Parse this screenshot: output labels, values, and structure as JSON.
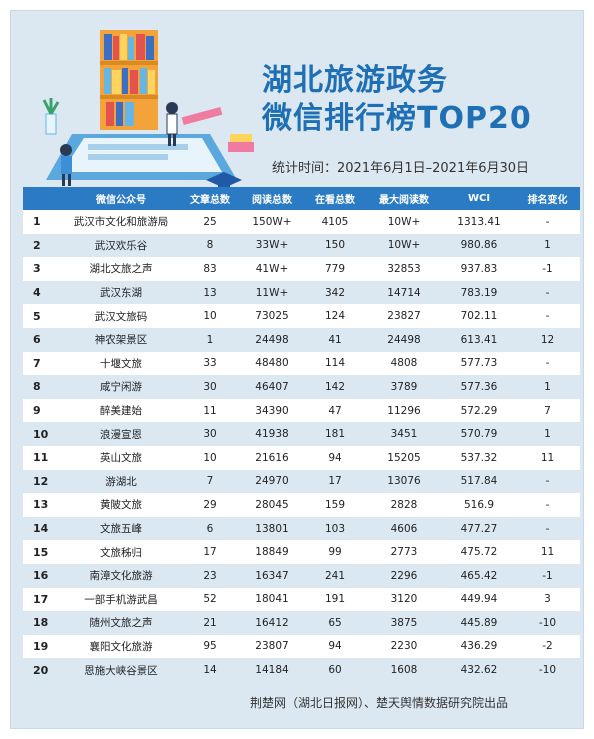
{
  "title_line1": "湖北旅游政务",
  "title_line2": "微信排行榜TOP20",
  "period": "统计时间：2021年6月1日–2021年6月30日",
  "columns": [
    "微信公众号",
    "文章总数",
    "阅读总数",
    "在看总数",
    "最大阅读数",
    "WCI",
    "排名变化"
  ],
  "rows": [
    [
      "1",
      "武汉市文化和旅游局",
      "25",
      "150W+",
      "4105",
      "10W+",
      "1313.41",
      "-"
    ],
    [
      "2",
      "武汉欢乐谷",
      "8",
      "33W+",
      "150",
      "10W+",
      "980.86",
      "1"
    ],
    [
      "3",
      "湖北文旅之声",
      "83",
      "41W+",
      "779",
      "32853",
      "937.83",
      "-1"
    ],
    [
      "4",
      "武汉东湖",
      "13",
      "11W+",
      "342",
      "14714",
      "783.19",
      "-"
    ],
    [
      "5",
      "武汉文旅码",
      "10",
      "73025",
      "124",
      "23827",
      "702.11",
      "-"
    ],
    [
      "6",
      "神农架景区",
      "1",
      "24498",
      "41",
      "24498",
      "613.41",
      "12"
    ],
    [
      "7",
      "十堰文旅",
      "33",
      "48480",
      "114",
      "4808",
      "577.73",
      "-"
    ],
    [
      "8",
      "咸宁闲游",
      "30",
      "46407",
      "142",
      "3789",
      "577.36",
      "1"
    ],
    [
      "9",
      "醉美建始",
      "11",
      "34390",
      "47",
      "11296",
      "572.29",
      "7"
    ],
    [
      "10",
      "浪漫宣恩",
      "30",
      "41938",
      "181",
      "3451",
      "570.79",
      "1"
    ],
    [
      "11",
      "英山文旅",
      "10",
      "21616",
      "94",
      "15205",
      "537.32",
      "11"
    ],
    [
      "12",
      "游湖北",
      "7",
      "24970",
      "17",
      "13076",
      "517.84",
      "-"
    ],
    [
      "13",
      "黄陂文旅",
      "29",
      "28045",
      "159",
      "2828",
      "516.9",
      "-"
    ],
    [
      "14",
      "文旅五峰",
      "6",
      "13801",
      "103",
      "4606",
      "477.27",
      "-"
    ],
    [
      "15",
      "文旅秭归",
      "17",
      "18849",
      "99",
      "2773",
      "475.72",
      "11"
    ],
    [
      "16",
      "南漳文化旅游",
      "23",
      "16347",
      "241",
      "2296",
      "465.42",
      "-1"
    ],
    [
      "17",
      "一部手机游武昌",
      "52",
      "18041",
      "191",
      "3120",
      "449.94",
      "3"
    ],
    [
      "18",
      "随州文旅之声",
      "21",
      "16412",
      "65",
      "3875",
      "445.89",
      "-10"
    ],
    [
      "19",
      "襄阳文化旅游",
      "95",
      "23807",
      "94",
      "2230",
      "436.29",
      "-2"
    ],
    [
      "20",
      "恩施大峡谷景区",
      "14",
      "14184",
      "60",
      "1608",
      "432.62",
      "-10"
    ]
  ],
  "footer": "荆楚网（湖北日报网）、楚天舆情数据研究院出品",
  "colors": {
    "accent": "#1f6fb5",
    "header_bg": "#2b7bc4",
    "panel_bg": "#dce8f1",
    "stripe": "#dbe8f2"
  }
}
